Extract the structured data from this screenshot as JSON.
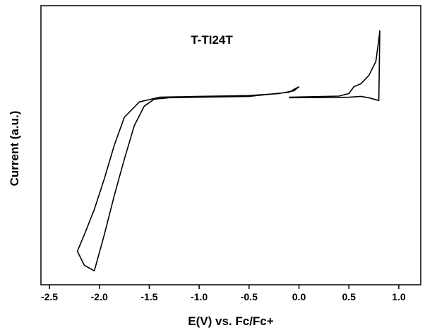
{
  "chart_data": {
    "type": "line",
    "title": "T-TI24T",
    "xlabel": "E(V) vs. Fc/Fc+",
    "ylabel": "Current (a.u.)",
    "x": [
      0.0,
      -0.1,
      -0.5,
      -1.0,
      -1.3,
      -1.45,
      -1.55,
      -1.65,
      -1.75,
      -1.85,
      -1.95,
      -2.05,
      -2.15,
      -2.22,
      -2.15,
      -2.05,
      -1.95,
      -1.85,
      -1.75,
      -1.6,
      -1.4,
      -1.0,
      -0.5,
      -0.2,
      -0.05,
      0.0,
      null,
      -0.1,
      0.4,
      0.5,
      0.55,
      0.62,
      0.7,
      0.77,
      0.8,
      0.81,
      0.8,
      0.75,
      0.7,
      0.62,
      0.5,
      0.3,
      -0.1
    ],
    "series": [
      {
        "name": "T-TI24T",
        "color": "#000000",
        "values": [
          0.71,
          0.69,
          0.675,
          0.672,
          0.67,
          0.665,
          0.64,
          0.57,
          0.45,
          0.32,
          0.18,
          0.05,
          0.07,
          0.12,
          0.18,
          0.27,
          0.38,
          0.5,
          0.6,
          0.655,
          0.672,
          0.675,
          0.678,
          0.685,
          0.695,
          0.71,
          null,
          0.672,
          0.676,
          0.685,
          0.71,
          0.72,
          0.75,
          0.8,
          0.88,
          0.91,
          0.66,
          0.665,
          0.67,
          0.675,
          0.672,
          0.671,
          0.67
        ]
      }
    ],
    "xlim": [
      -2.585,
      1.22
    ],
    "ylim": [
      0,
      1
    ],
    "xticks": [
      {
        "value": -2.5,
        "label": "-2.5"
      },
      {
        "value": -2.0,
        "label": "-2.0"
      },
      {
        "value": -1.5,
        "label": "-1.5"
      },
      {
        "value": -1.0,
        "label": "-1.0"
      },
      {
        "value": -0.5,
        "label": "-0.5"
      },
      {
        "value": 0.0,
        "label": "0.0"
      },
      {
        "value": 0.5,
        "label": "0.5"
      },
      {
        "value": 1.0,
        "label": "1.0"
      }
    ]
  }
}
